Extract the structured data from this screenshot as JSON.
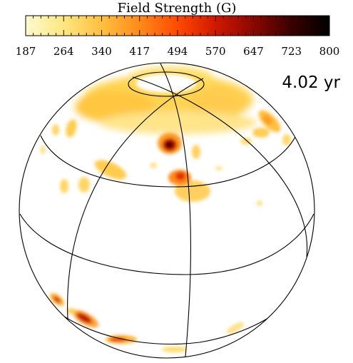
{
  "colorbar": {
    "title": "Field Strength (G)",
    "ticks": [
      "187",
      "264",
      "340",
      "417",
      "494",
      "570",
      "647",
      "723",
      "800"
    ],
    "colors": [
      "#fffbd0",
      "#ffe680",
      "#ffc040",
      "#ff8a1a",
      "#ff4a00",
      "#d01800",
      "#8a0800",
      "#3a0000",
      "#000000"
    ]
  },
  "time_label": "4.02 yr",
  "spots": [
    {
      "name": "north-polar-cap",
      "value": 300
    },
    {
      "name": "north-polar-ring",
      "value": 260
    },
    {
      "name": "mid-latitude-spot",
      "value": 780
    },
    {
      "name": "equator-spot",
      "value": 620
    },
    {
      "name": "limb-spot-east",
      "value": 420
    },
    {
      "name": "limb-spot-west",
      "value": 300
    },
    {
      "name": "southern-limb-spot",
      "value": 650
    },
    {
      "name": "southern-limb-spot-2",
      "value": 560
    },
    {
      "name": "south-bottom-spot",
      "value": 520
    }
  ]
}
